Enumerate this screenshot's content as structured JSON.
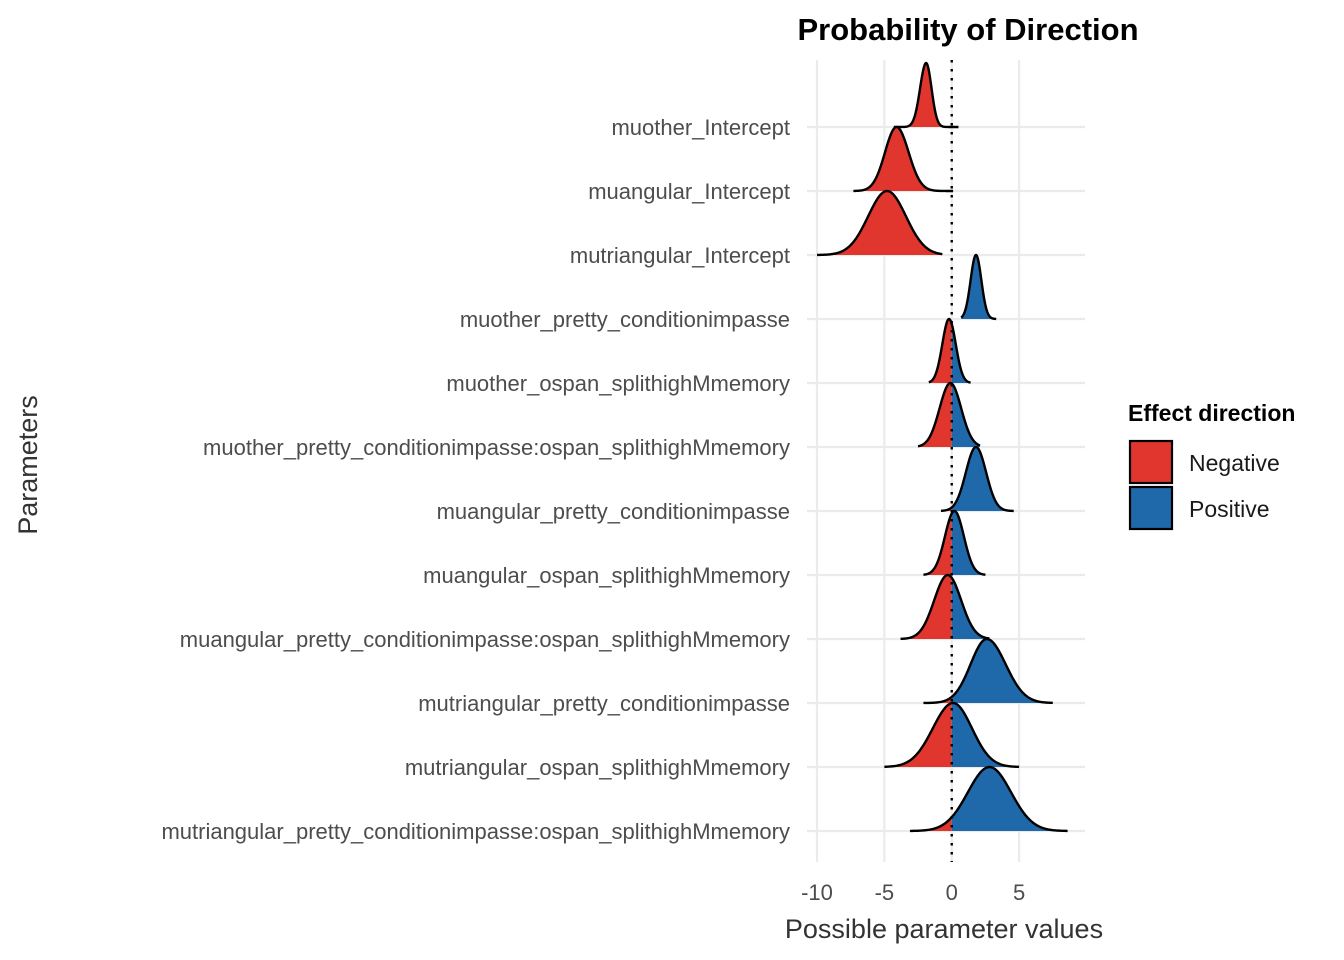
{
  "chart_data": {
    "type": "ridgeline",
    "title": "Probability of Direction",
    "xlabel": "Possible parameter values",
    "ylabel": "Parameters",
    "xlim": [
      -10,
      9
    ],
    "xticks": [
      -10,
      -5,
      0,
      5
    ],
    "reference_line_x": 0,
    "grid": true,
    "legend": {
      "title": "Effect direction",
      "position": "right",
      "entries": [
        {
          "label": "Negative",
          "color": "#e0362e"
        },
        {
          "label": "Positive",
          "color": "#1f68aa"
        }
      ]
    },
    "series": [
      {
        "name": "muother_Intercept",
        "mode": -1.9,
        "sd_left": 0.45,
        "sd_right": 0.4,
        "min": -4.3,
        "max": 0.5
      },
      {
        "name": "muangular_Intercept",
        "mode": -4.1,
        "sd_left": 0.85,
        "sd_right": 0.9,
        "min": -7.3,
        "max": 0.1
      },
      {
        "name": "mutriangular_Intercept",
        "mode": -4.8,
        "sd_left": 1.4,
        "sd_right": 1.4,
        "min": -10.0,
        "max": -0.7
      },
      {
        "name": "muother_pretty_conditionimpasse",
        "mode": 1.8,
        "sd_left": 0.4,
        "sd_right": 0.4,
        "min": 0.7,
        "max": 3.3
      },
      {
        "name": "muother_ospan_splithighMmemory",
        "mode": -0.2,
        "sd_left": 0.5,
        "sd_right": 0.5,
        "min": -1.7,
        "max": 1.4
      },
      {
        "name": "muother_pretty_conditionimpasse:ospan_splithighMmemory",
        "mode": -0.1,
        "sd_left": 0.8,
        "sd_right": 0.8,
        "min": -2.5,
        "max": 2.1
      },
      {
        "name": "muangular_pretty_conditionimpasse",
        "mode": 1.8,
        "sd_left": 0.75,
        "sd_right": 0.75,
        "min": -0.8,
        "max": 4.6
      },
      {
        "name": "muangular_ospan_splithighMmemory",
        "mode": 0.2,
        "sd_left": 0.7,
        "sd_right": 0.7,
        "min": -2.1,
        "max": 2.5
      },
      {
        "name": "muangular_pretty_conditionimpasse:ospan_splithighMmemory",
        "mode": -0.3,
        "sd_left": 1.0,
        "sd_right": 1.0,
        "min": -3.8,
        "max": 2.8
      },
      {
        "name": "mutriangular_pretty_conditionimpasse",
        "mode": 2.6,
        "sd_left": 1.2,
        "sd_right": 1.4,
        "min": -2.1,
        "max": 7.5
      },
      {
        "name": "mutriangular_ospan_splithighMmemory",
        "mode": 0.1,
        "sd_left": 1.5,
        "sd_right": 1.4,
        "min": -5.0,
        "max": 5.0
      },
      {
        "name": "mutriangular_pretty_conditionimpasse:ospan_splithighMmemory",
        "mode": 2.8,
        "sd_left": 1.6,
        "sd_right": 1.6,
        "min": -3.1,
        "max": 8.6
      }
    ]
  }
}
